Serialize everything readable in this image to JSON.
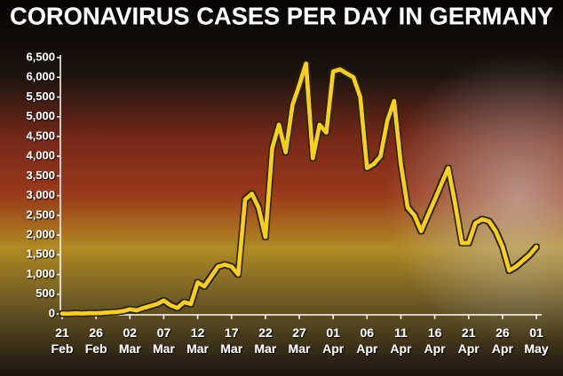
{
  "chart_data": {
    "type": "line",
    "title": "CORONAVIRUS CASES PER DAY IN GERMANY",
    "categories": [
      "21 Feb",
      null,
      null,
      null,
      null,
      "26 Feb",
      null,
      null,
      null,
      null,
      "02 Mar",
      null,
      null,
      null,
      null,
      "07 Mar",
      null,
      null,
      null,
      null,
      "12 Mar",
      null,
      null,
      null,
      null,
      "17 Mar",
      null,
      null,
      null,
      null,
      "22 Mar",
      null,
      null,
      null,
      null,
      "27 Mar",
      null,
      null,
      null,
      null,
      "01 Apr",
      null,
      null,
      null,
      null,
      "06 Apr",
      null,
      null,
      null,
      null,
      "11 Apr",
      null,
      null,
      null,
      null,
      "16 Apr",
      null,
      null,
      null,
      null,
      "21 Apr",
      null,
      null,
      null,
      null,
      "26 Apr",
      null,
      null,
      null,
      null,
      "01 May"
    ],
    "values": [
      10,
      5,
      15,
      10,
      20,
      15,
      30,
      40,
      50,
      70,
      120,
      90,
      150,
      200,
      250,
      340,
      220,
      150,
      300,
      250,
      800,
      700,
      950,
      1200,
      1250,
      1200,
      1000,
      2900,
      3050,
      2700,
      1950,
      4200,
      4800,
      4100,
      5300,
      5800,
      6350,
      3950,
      4800,
      4600,
      6150,
      6200,
      6100,
      6000,
      5500,
      3700,
      3800,
      4000,
      4900,
      5400,
      3800,
      2700,
      2500,
      2100,
      2500,
      2900,
      3300,
      3700,
      2800,
      1800,
      1800,
      2300,
      2400,
      2350,
      2100,
      1700,
      1100,
      1200,
      1350,
      1500,
      1700
    ],
    "color": "#f7cf1c",
    "ylim": [
      0,
      6500
    ],
    "yticks": [
      0,
      {
        "value": 500,
        "label": "500"
      },
      {
        "value": 1000,
        "label": "1,000"
      },
      {
        "value": 1500,
        "label": "1,500"
      },
      {
        "value": 2000,
        "label": "2,000"
      },
      {
        "value": 2500,
        "label": "2,500"
      },
      {
        "value": 3000,
        "label": "3,000"
      },
      {
        "value": 3500,
        "label": "3,500"
      },
      {
        "value": 4000,
        "label": "4,000"
      },
      {
        "value": 4500,
        "label": "4,500"
      },
      {
        "value": 5000,
        "label": "5,000"
      },
      {
        "value": 5500,
        "label": "5,500"
      },
      {
        "value": 6000,
        "label": "6,000"
      },
      {
        "value": 6500,
        "label": "6,500"
      }
    ]
  }
}
